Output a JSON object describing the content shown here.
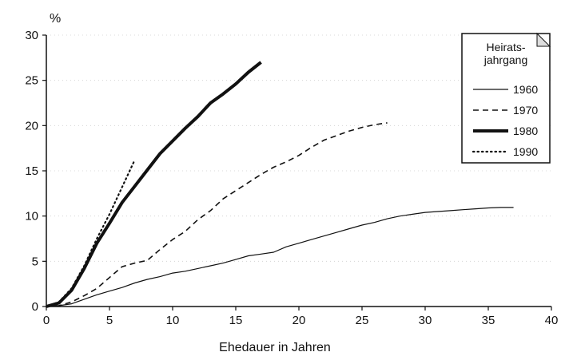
{
  "chart_data": {
    "type": "line",
    "title": "",
    "xlabel": "Ehedauer in Jahren",
    "ylabel": "%",
    "xlim": [
      0,
      40
    ],
    "ylim": [
      0,
      30
    ],
    "xticks": [
      0,
      5,
      10,
      15,
      20,
      25,
      30,
      35,
      40
    ],
    "yticks": [
      0,
      5,
      10,
      15,
      20,
      25,
      30
    ],
    "legend": {
      "title_line1": "Heirats-",
      "title_line2": "jahrgang",
      "position": "top-right"
    },
    "series": [
      {
        "name": "1960",
        "style": "solid-thin",
        "x": [
          0,
          1,
          2,
          3,
          4,
          5,
          6,
          7,
          8,
          9,
          10,
          11,
          12,
          13,
          14,
          15,
          16,
          17,
          18,
          19,
          20,
          21,
          22,
          23,
          24,
          25,
          26,
          27,
          28,
          29,
          30,
          31,
          32,
          33,
          34,
          35,
          36,
          37
        ],
        "y": [
          0,
          0.1,
          0.3,
          0.8,
          1.3,
          1.7,
          2.1,
          2.6,
          3.0,
          3.3,
          3.7,
          3.9,
          4.2,
          4.5,
          4.8,
          5.2,
          5.6,
          5.8,
          6.0,
          6.6,
          7.0,
          7.4,
          7.8,
          8.2,
          8.6,
          9.0,
          9.3,
          9.7,
          10.0,
          10.2,
          10.4,
          10.5,
          10.6,
          10.7,
          10.8,
          10.9,
          10.95,
          10.95
        ]
      },
      {
        "name": "1970",
        "style": "dashed",
        "x": [
          0,
          1,
          2,
          3,
          4,
          5,
          6,
          7,
          8,
          9,
          10,
          11,
          12,
          13,
          14,
          15,
          16,
          17,
          18,
          19,
          20,
          21,
          22,
          23,
          24,
          25,
          26,
          27
        ],
        "y": [
          0,
          0.1,
          0.5,
          1.2,
          2.0,
          3.2,
          4.4,
          4.8,
          5.1,
          6.3,
          7.4,
          8.3,
          9.6,
          10.6,
          11.9,
          12.8,
          13.7,
          14.6,
          15.4,
          16.0,
          16.7,
          17.6,
          18.4,
          18.9,
          19.4,
          19.8,
          20.1,
          20.3
        ]
      },
      {
        "name": "1980",
        "style": "solid-thick",
        "x": [
          0,
          1,
          2,
          3,
          4,
          5,
          6,
          7,
          8,
          9,
          10,
          11,
          12,
          13,
          14,
          15,
          16,
          17
        ],
        "y": [
          0,
          0.4,
          1.8,
          4.2,
          7.0,
          9.2,
          11.5,
          13.3,
          15.1,
          16.9,
          18.3,
          19.7,
          21.0,
          22.5,
          23.5,
          24.6,
          25.9,
          27.0
        ]
      },
      {
        "name": "1990",
        "style": "dotted",
        "x": [
          0,
          1,
          2,
          3,
          4,
          5,
          6,
          7
        ],
        "y": [
          0,
          0.5,
          2.0,
          4.5,
          7.5,
          10.2,
          13.2,
          16.2
        ]
      }
    ]
  }
}
